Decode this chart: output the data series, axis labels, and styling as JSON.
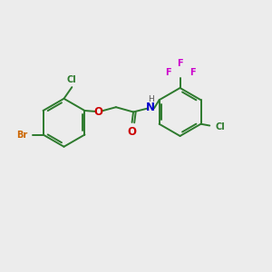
{
  "background_color": "#ececec",
  "bond_color": "#2d7a2d",
  "atom_colors": {
    "Br": "#cc6600",
    "Cl": "#2d7a2d",
    "O": "#cc0000",
    "N": "#0000cc",
    "H": "#555555",
    "F": "#cc00cc"
  },
  "figsize": [
    3.0,
    3.0
  ],
  "dpi": 100
}
